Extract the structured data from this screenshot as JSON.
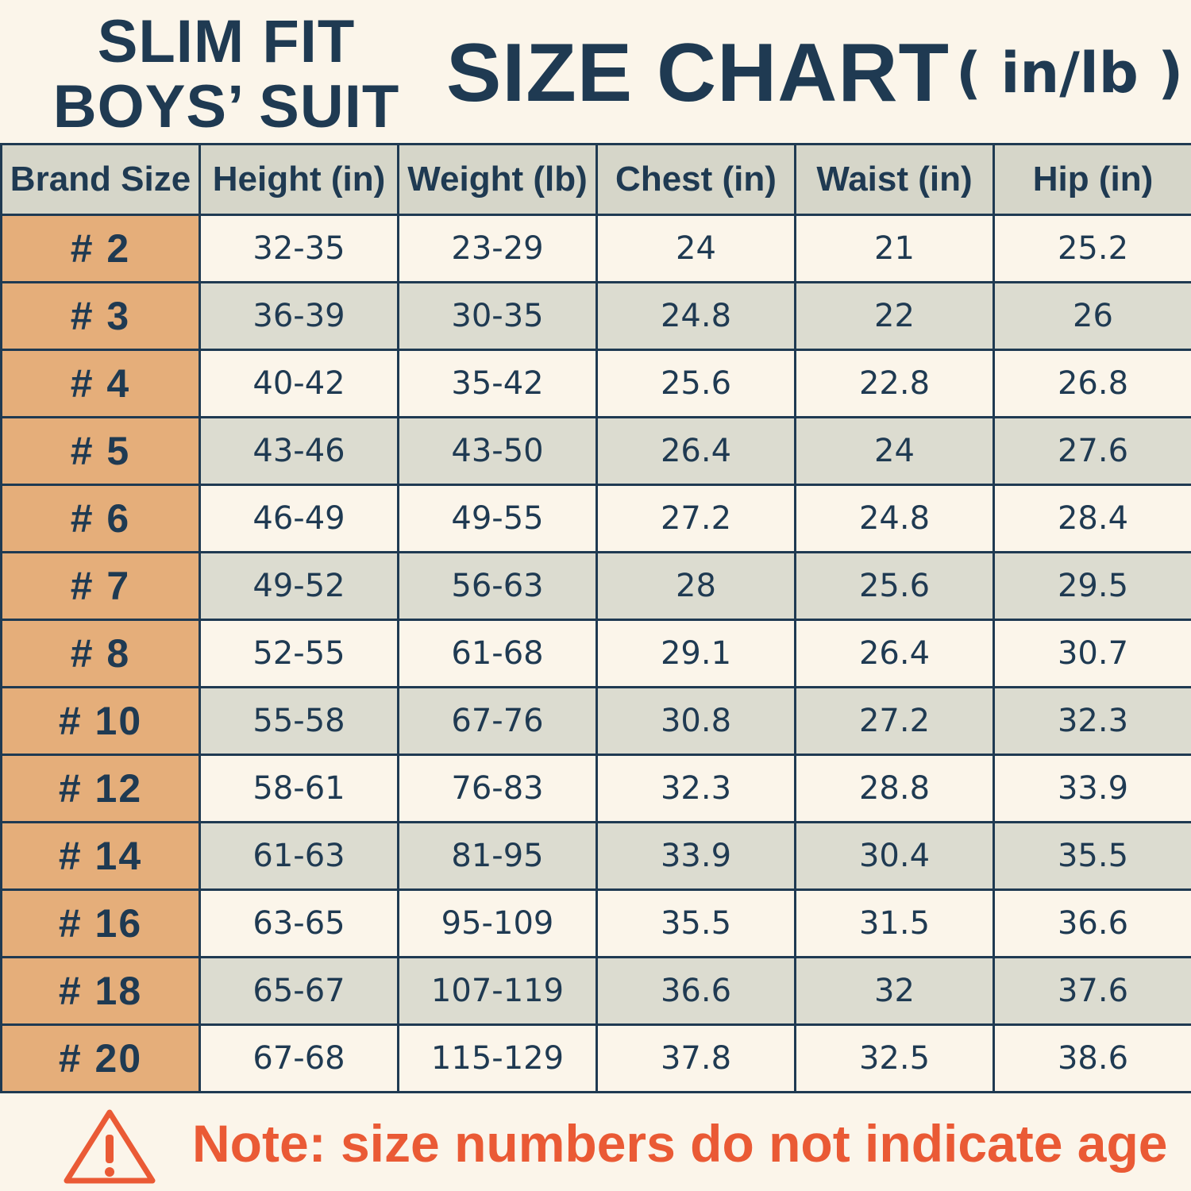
{
  "header": {
    "brand_line1": "SLIM FIT",
    "brand_line2": "BOYS’ SUIT",
    "chart_title": "SIZE CHART",
    "unit_label": "( in/lb )"
  },
  "table": {
    "columns": [
      "Brand Size",
      "Height (in)",
      "Weight (lb)",
      "Chest (in)",
      "Waist (in)",
      "Hip (in)"
    ],
    "rows": [
      [
        "# 2",
        "32-35",
        "23-29",
        "24",
        "21",
        "25.2"
      ],
      [
        "# 3",
        "36-39",
        "30-35",
        "24.8",
        "22",
        "26"
      ],
      [
        "# 4",
        "40-42",
        "35-42",
        "25.6",
        "22.8",
        "26.8"
      ],
      [
        "# 5",
        "43-46",
        "43-50",
        "26.4",
        "24",
        "27.6"
      ],
      [
        "# 6",
        "46-49",
        "49-55",
        "27.2",
        "24.8",
        "28.4"
      ],
      [
        "# 7",
        "49-52",
        "56-63",
        "28",
        "25.6",
        "29.5"
      ],
      [
        "# 8",
        "52-55",
        "61-68",
        "29.1",
        "26.4",
        "30.7"
      ],
      [
        "# 10",
        "55-58",
        "67-76",
        "30.8",
        "27.2",
        "32.3"
      ],
      [
        "# 12",
        "58-61",
        "76-83",
        "32.3",
        "28.8",
        "33.9"
      ],
      [
        "# 14",
        "61-63",
        "81-95",
        "33.9",
        "30.4",
        "35.5"
      ],
      [
        "# 16",
        "63-65",
        "95-109",
        "35.5",
        "31.5",
        "36.6"
      ],
      [
        "# 18",
        "65-67",
        "107-119",
        "36.6",
        "32",
        "37.6"
      ],
      [
        "# 20",
        "67-68",
        "115-129",
        "37.8",
        "32.5",
        "38.6"
      ]
    ]
  },
  "note": {
    "icon": "warning-icon",
    "text": "Note: size numbers do not indicate age"
  },
  "colors": {
    "navy": "#1f3a52",
    "background": "#fbf5ea",
    "header_gray": "#d6d6c9",
    "row_gray": "#dcdcd0",
    "size_orange": "#e5ae7a",
    "note_red": "#ea5a35"
  }
}
